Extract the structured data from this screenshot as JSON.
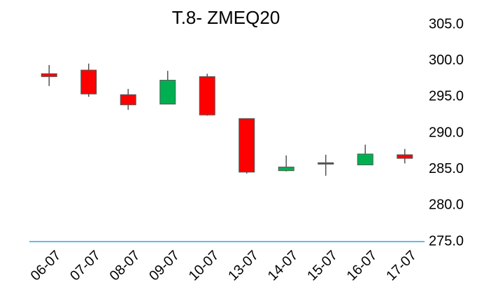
{
  "chart_data": {
    "type": "candlestick",
    "title": "T.8- ZMEQ20",
    "categories": [
      "06-07",
      "07-07",
      "08-07",
      "09-07",
      "10-07",
      "13-07",
      "14-07",
      "15-07",
      "16-07",
      "17-07"
    ],
    "open": [
      298.2,
      298.7,
      295.3,
      294.0,
      297.8,
      292.0,
      284.8,
      285.8,
      285.6,
      287.0
    ],
    "high": [
      299.4,
      299.6,
      296.1,
      298.6,
      298.2,
      292.0,
      286.9,
      287.0,
      288.4,
      287.8
    ],
    "low": [
      296.5,
      295.0,
      293.2,
      294.0,
      292.4,
      284.4,
      284.7,
      284.1,
      285.6,
      285.8
    ],
    "close": [
      297.8,
      295.4,
      293.9,
      297.3,
      292.5,
      284.6,
      285.3,
      285.8,
      287.1,
      286.5
    ],
    "up_color": "#00b050",
    "down_color": "#ff0000",
    "wick_color": "#555555",
    "axis_color": "#29a8e0",
    "ylim": [
      275,
      305
    ],
    "yticks": [
      {
        "value": 275,
        "label": "275.0"
      },
      {
        "value": 280,
        "label": "280.0"
      },
      {
        "value": 285,
        "label": "285.0"
      },
      {
        "value": 290,
        "label": "290.0"
      },
      {
        "value": 295,
        "label": "295.0"
      },
      {
        "value": 300,
        "label": "300.0"
      },
      {
        "value": 305,
        "label": "305.0"
      }
    ],
    "grid": false
  }
}
